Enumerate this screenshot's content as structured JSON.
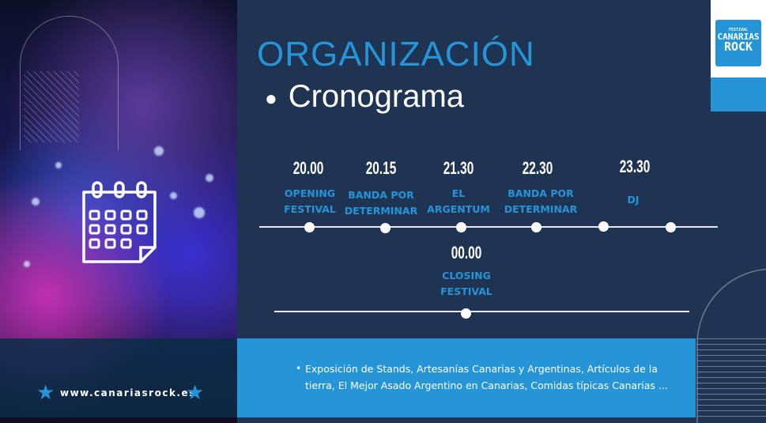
{
  "header": {
    "title": "ORGANIZACIÓN",
    "subtitle": "Cronograma"
  },
  "logo": {
    "text": "FESTIVAL CANARIAS ROCK",
    "top": "FESTIVAL",
    "line1": "CANARIAS",
    "line2": "ROCK"
  },
  "timeline": [
    {
      "time": "20.00",
      "label1": "OPENING",
      "label2": "FESTIVAL"
    },
    {
      "time": "20.15",
      "label1": "BANDA POR",
      "label2": "DETERMINAR"
    },
    {
      "time": "21.30",
      "label1": "EL",
      "label2": "ARGENTUM"
    },
    {
      "time": "22.30",
      "label1": "BANDA POR",
      "label2": "DETERMINAR"
    },
    {
      "time": "23.30",
      "label1": "DJ",
      "label2": ""
    }
  ],
  "timeline2": {
    "time": "00.00",
    "label1": "CLOSING",
    "label2": "FESTIVAL"
  },
  "footer": {
    "url": "www.canariasrock.es",
    "info": "Exposición de Stands, Artesanías Canarias y Argentinas, Artículos de la tierra, El Mejor Asado Argentino en Canarias, Comidas típicas Canarias ..."
  },
  "icons": {
    "calendar": "calendar-icon",
    "star": "star-icon"
  },
  "colors": {
    "accent": "#2595d8",
    "background": "#1f3353"
  }
}
